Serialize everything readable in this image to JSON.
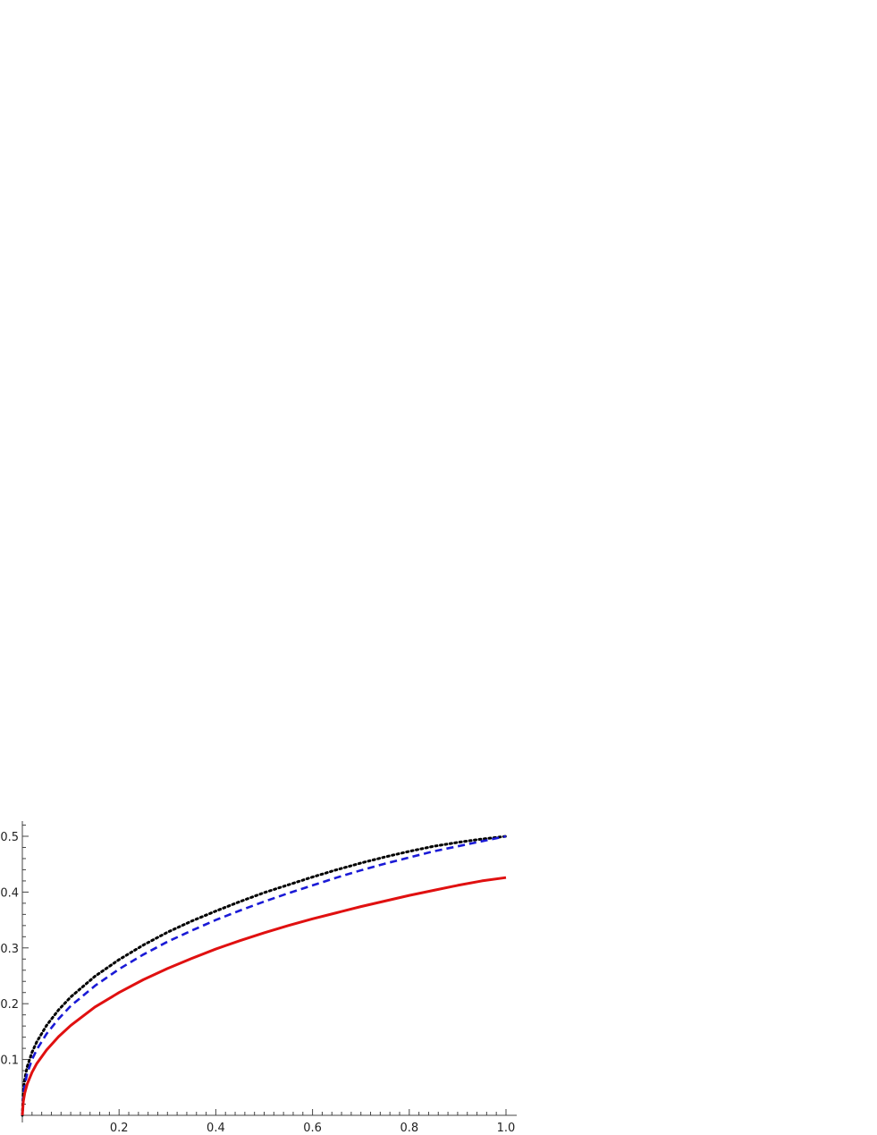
{
  "chart_data": {
    "type": "line",
    "title": "",
    "xlabel": "",
    "ylabel": "",
    "xlim": [
      0,
      1.0
    ],
    "ylim": [
      0,
      0.52
    ],
    "grid": false,
    "x_ticks": [
      {
        "value": 0.2,
        "label": "0.2"
      },
      {
        "value": 0.4,
        "label": "0.4"
      },
      {
        "value": 0.6,
        "label": "0.6"
      },
      {
        "value": 0.8,
        "label": "0.8"
      },
      {
        "value": 1.0,
        "label": "1.0"
      }
    ],
    "y_ticks": [
      {
        "value": 0.1,
        "label": "0.1"
      },
      {
        "value": 0.2,
        "label": "0.2"
      },
      {
        "value": 0.3,
        "label": "0.3"
      },
      {
        "value": 0.4,
        "label": "0.4"
      },
      {
        "value": 0.5,
        "label": "0.5"
      }
    ],
    "x_minor_step": 0.02,
    "y_minor_step": 0.02,
    "series": [
      {
        "style": "dotted",
        "color": "#000000",
        "x": [
          0,
          0.002,
          0.005,
          0.01,
          0.02,
          0.03,
          0.05,
          0.075,
          0.1,
          0.15,
          0.2,
          0.25,
          0.3,
          0.35,
          0.4,
          0.45,
          0.5,
          0.55,
          0.6,
          0.65,
          0.7,
          0.75,
          0.8,
          0.85,
          0.9,
          0.95,
          1.0
        ],
        "y": [
          0,
          0.045,
          0.065,
          0.087,
          0.113,
          0.132,
          0.161,
          0.189,
          0.212,
          0.249,
          0.279,
          0.305,
          0.328,
          0.348,
          0.366,
          0.383,
          0.399,
          0.413,
          0.427,
          0.44,
          0.452,
          0.463,
          0.473,
          0.482,
          0.489,
          0.495,
          0.5
        ]
      },
      {
        "style": "dashed",
        "color": "#1a1ad6",
        "x": [
          0,
          0.002,
          0.005,
          0.01,
          0.02,
          0.03,
          0.05,
          0.075,
          0.1,
          0.15,
          0.2,
          0.25,
          0.3,
          0.35,
          0.4,
          0.45,
          0.5,
          0.55,
          0.6,
          0.65,
          0.7,
          0.75,
          0.8,
          0.85,
          0.9,
          0.95,
          1.0
        ],
        "y": [
          0,
          0.037,
          0.055,
          0.075,
          0.1,
          0.118,
          0.146,
          0.173,
          0.196,
          0.232,
          0.262,
          0.288,
          0.311,
          0.331,
          0.35,
          0.367,
          0.383,
          0.398,
          0.412,
          0.426,
          0.439,
          0.451,
          0.462,
          0.473,
          0.482,
          0.491,
          0.5
        ]
      },
      {
        "style": "solid",
        "color": "#e01010",
        "x": [
          0,
          0.002,
          0.005,
          0.01,
          0.02,
          0.03,
          0.05,
          0.075,
          0.1,
          0.15,
          0.2,
          0.25,
          0.3,
          0.35,
          0.4,
          0.45,
          0.5,
          0.55,
          0.6,
          0.65,
          0.7,
          0.75,
          0.8,
          0.85,
          0.9,
          0.95,
          1.0
        ],
        "y": [
          0,
          0.025,
          0.04,
          0.056,
          0.077,
          0.093,
          0.117,
          0.141,
          0.161,
          0.194,
          0.22,
          0.243,
          0.263,
          0.281,
          0.298,
          0.313,
          0.327,
          0.34,
          0.352,
          0.363,
          0.374,
          0.384,
          0.394,
          0.403,
          0.412,
          0.42,
          0.426
        ]
      }
    ]
  }
}
